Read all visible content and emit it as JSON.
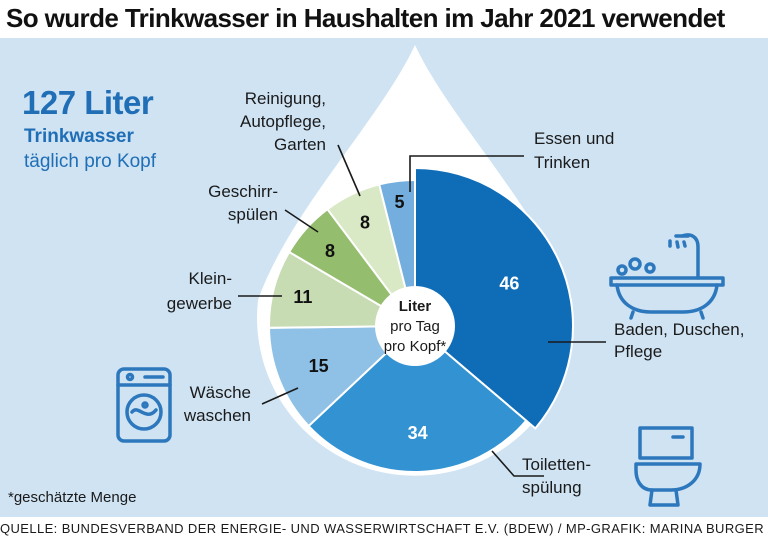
{
  "title": "So wurde Trinkwasser in Haushalten im Jahr 2021 verwendet",
  "headline": {
    "amount": "127 Liter",
    "line1": "Trinkwasser",
    "line2": "täglich pro Kopf"
  },
  "center_label": [
    "Liter",
    "pro Tag",
    "pro Kopf*"
  ],
  "footnote": "*geschätzte Menge",
  "source": "QUELLE: BUNDESVERBAND DER ENERGIE- UND WASSERWIRTSCHAFT E.V. (BDEW) / MP-GRAFIK: MARINA BURGER",
  "colors": {
    "panel": "#cfe3f3",
    "accent": "#1f6eb6",
    "drop": "#ffffff",
    "icon": "#2d78bd"
  },
  "chart_data": {
    "type": "pie",
    "variant": "donut",
    "title": "So wurde Trinkwasser in Haushalten im Jahr 2021 verwendet",
    "unit": "Liter pro Tag pro Kopf",
    "total": 127,
    "slices": [
      {
        "key": "baden",
        "label": [
          "Baden, Duschen,",
          "Pflege"
        ],
        "value": 46,
        "color": "#0f6db8",
        "text_color": "#ffffff"
      },
      {
        "key": "toilette",
        "label": [
          "Toiletten-",
          "spülung"
        ],
        "value": 34,
        "color": "#3393d2",
        "text_color": "#ffffff"
      },
      {
        "key": "waesche",
        "label": [
          "Wäsche",
          "waschen"
        ],
        "value": 15,
        "color": "#8fc0e5",
        "text_color": "#111111"
      },
      {
        "key": "kleingewerbe",
        "label": [
          "Klein-",
          "gewerbe"
        ],
        "value": 11,
        "color": "#c7dcb3",
        "text_color": "#111111"
      },
      {
        "key": "geschirr",
        "label": [
          "Geschirr-",
          "spülen"
        ],
        "value": 8,
        "color": "#94bd6e",
        "text_color": "#111111"
      },
      {
        "key": "reinigung",
        "label": [
          "Reinigung,",
          "Autopflege,",
          "Garten"
        ],
        "value": 8,
        "color": "#d9e8c5",
        "text_color": "#111111"
      },
      {
        "key": "essen",
        "label": [
          "Essen und",
          "Trinken"
        ],
        "value": 5,
        "color": "#74aede",
        "text_color": "#111111"
      }
    ]
  }
}
